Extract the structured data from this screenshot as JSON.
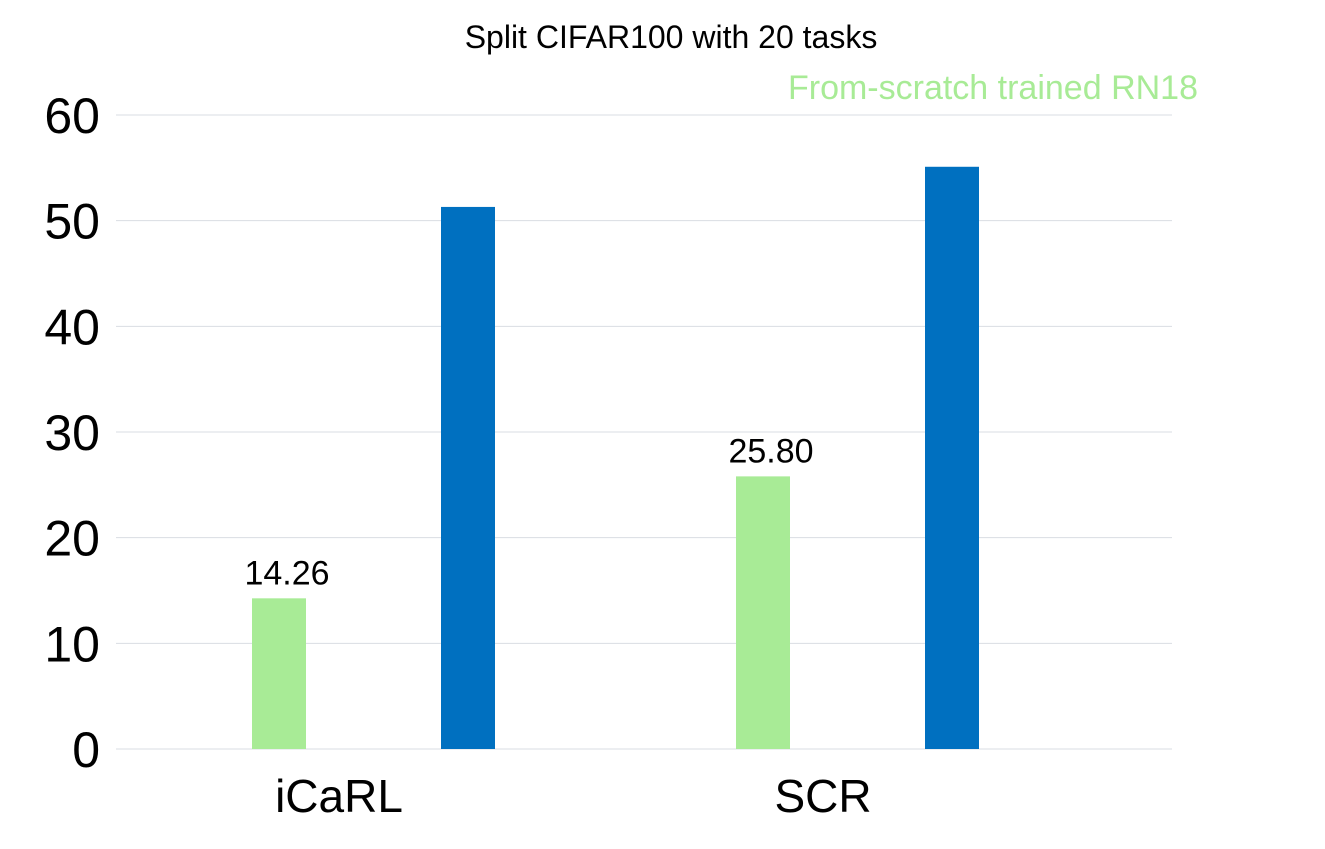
{
  "chart_data": {
    "type": "bar",
    "title": "Split CIFAR100 with 20 tasks",
    "categories": [
      "iCaRL",
      "SCR"
    ],
    "series": [
      {
        "name": "From-scratch trained RN18",
        "color": "#a8eb96",
        "values": [
          14.26,
          25.8
        ],
        "value_labels": [
          "14.26",
          "25.80"
        ]
      },
      {
        "color": "#0070c0",
        "values": [
          51.3,
          55.1
        ],
        "value_labels": [
          "",
          ""
        ]
      }
    ],
    "ylim": [
      0,
      60
    ],
    "yticks": [
      0,
      10,
      20,
      30,
      40,
      50,
      60
    ],
    "grid": true,
    "legend_position": "top-right"
  }
}
